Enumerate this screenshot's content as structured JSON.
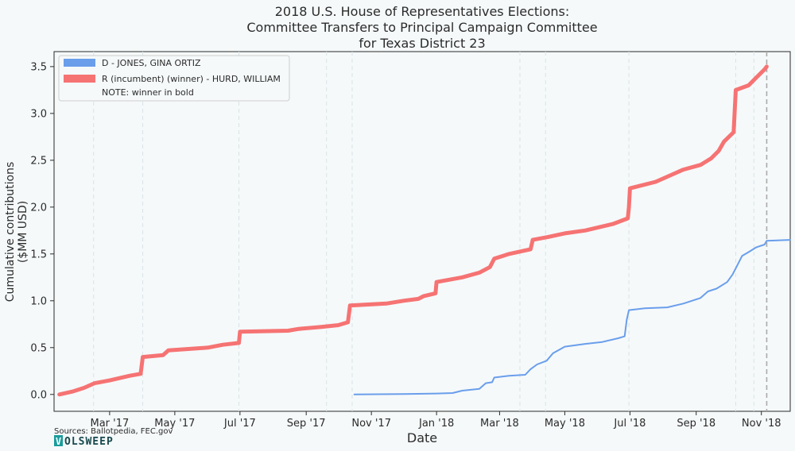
{
  "chart_data": {
    "type": "line",
    "title_lines": [
      "2018 U.S. House of Representatives Elections:",
      "Committee Transfers to Principal Campaign Committee",
      "for Texas District 23"
    ],
    "xlabel": "Date",
    "ylabel_lines": [
      "Cumulative contributions",
      "($MM USD)"
    ],
    "x_range": [
      "2017-01-08",
      "2018-11-28"
    ],
    "ylim": [
      -0.18,
      3.66
    ],
    "y_ticks": [
      0.0,
      0.5,
      1.0,
      1.5,
      2.0,
      2.5,
      3.0,
      3.5
    ],
    "y_tick_labels": [
      "0.0",
      "0.5",
      "1.0",
      "1.5",
      "2.0",
      "2.5",
      "3.0",
      "3.5"
    ],
    "x_ticks": [
      {
        "date": "2017-03-01",
        "label": "Mar '17"
      },
      {
        "date": "2017-05-01",
        "label": "May '17"
      },
      {
        "date": "2017-07-01",
        "label": "Jul '17"
      },
      {
        "date": "2017-09-01",
        "label": "Sep '17"
      },
      {
        "date": "2017-11-01",
        "label": "Nov '17"
      },
      {
        "date": "2018-01-01",
        "label": "Jan '18"
      },
      {
        "date": "2018-03-01",
        "label": "Mar '18"
      },
      {
        "date": "2018-05-01",
        "label": "May '18"
      },
      {
        "date": "2018-07-01",
        "label": "Jul '18"
      },
      {
        "date": "2018-09-01",
        "label": "Sep '18"
      },
      {
        "date": "2018-11-01",
        "label": "Nov '18"
      }
    ],
    "vertical_gridlines": [
      "2017-02-14",
      "2017-04-01",
      "2017-06-30",
      "2017-09-20",
      "2017-10-14",
      "2018-03-20",
      "2018-04-13",
      "2018-06-30",
      "2018-10-08",
      "2018-10-25"
    ],
    "election_day": "2018-11-06",
    "grid": false,
    "legend": {
      "placement": "top-left",
      "note": "NOTE: winner in bold"
    },
    "series": [
      {
        "name": "D - JONES, GINA ORTIZ",
        "color": "#6a9eeb",
        "bold": false,
        "points": [
          [
            "2017-10-16",
            0.0
          ],
          [
            "2017-12-01",
            0.005
          ],
          [
            "2018-01-01",
            0.01
          ],
          [
            "2018-01-16",
            0.015
          ],
          [
            "2018-01-25",
            0.04
          ],
          [
            "2018-02-10",
            0.06
          ],
          [
            "2018-02-16",
            0.12
          ],
          [
            "2018-02-22",
            0.13
          ],
          [
            "2018-02-24",
            0.18
          ],
          [
            "2018-03-10",
            0.2
          ],
          [
            "2018-03-25",
            0.21
          ],
          [
            "2018-03-30",
            0.27
          ],
          [
            "2018-04-05",
            0.32
          ],
          [
            "2018-04-14",
            0.36
          ],
          [
            "2018-04-20",
            0.44
          ],
          [
            "2018-05-01",
            0.51
          ],
          [
            "2018-05-20",
            0.54
          ],
          [
            "2018-06-05",
            0.56
          ],
          [
            "2018-06-20",
            0.6
          ],
          [
            "2018-06-26",
            0.62
          ],
          [
            "2018-06-28",
            0.8
          ],
          [
            "2018-06-30",
            0.9
          ],
          [
            "2018-07-15",
            0.92
          ],
          [
            "2018-08-05",
            0.93
          ],
          [
            "2018-08-20",
            0.97
          ],
          [
            "2018-09-05",
            1.03
          ],
          [
            "2018-09-12",
            1.1
          ],
          [
            "2018-09-20",
            1.13
          ],
          [
            "2018-09-30",
            1.2
          ],
          [
            "2018-10-05",
            1.28
          ],
          [
            "2018-10-10",
            1.39
          ],
          [
            "2018-10-14",
            1.48
          ],
          [
            "2018-10-20",
            1.52
          ],
          [
            "2018-10-27",
            1.57
          ],
          [
            "2018-11-04",
            1.6
          ],
          [
            "2018-11-06",
            1.64
          ],
          [
            "2018-11-28",
            1.65
          ]
        ]
      },
      {
        "name": "R (incumbent) (winner) - HURD, WILLIAM",
        "color": "#f67373",
        "bold": true,
        "points": [
          [
            "2017-01-13",
            0.0
          ],
          [
            "2017-01-25",
            0.03
          ],
          [
            "2017-02-05",
            0.07
          ],
          [
            "2017-02-15",
            0.12
          ],
          [
            "2017-03-01",
            0.15
          ],
          [
            "2017-03-20",
            0.2
          ],
          [
            "2017-03-30",
            0.22
          ],
          [
            "2017-04-01",
            0.4
          ],
          [
            "2017-04-20",
            0.42
          ],
          [
            "2017-04-25",
            0.47
          ],
          [
            "2017-06-01",
            0.5
          ],
          [
            "2017-06-15",
            0.53
          ],
          [
            "2017-06-30",
            0.55
          ],
          [
            "2017-07-01",
            0.67
          ],
          [
            "2017-08-15",
            0.68
          ],
          [
            "2017-08-25",
            0.7
          ],
          [
            "2017-09-15",
            0.72
          ],
          [
            "2017-10-01",
            0.74
          ],
          [
            "2017-10-10",
            0.77
          ],
          [
            "2017-10-12",
            0.95
          ],
          [
            "2017-11-15",
            0.97
          ],
          [
            "2017-12-01",
            1.0
          ],
          [
            "2017-12-15",
            1.02
          ],
          [
            "2017-12-20",
            1.05
          ],
          [
            "2017-12-31",
            1.08
          ],
          [
            "2018-01-01",
            1.2
          ],
          [
            "2018-01-25",
            1.25
          ],
          [
            "2018-02-10",
            1.3
          ],
          [
            "2018-02-20",
            1.36
          ],
          [
            "2018-02-24",
            1.45
          ],
          [
            "2018-03-10",
            1.5
          ],
          [
            "2018-03-30",
            1.55
          ],
          [
            "2018-04-01",
            1.65
          ],
          [
            "2018-04-15",
            1.68
          ],
          [
            "2018-05-01",
            1.72
          ],
          [
            "2018-05-20",
            1.75
          ],
          [
            "2018-06-15",
            1.82
          ],
          [
            "2018-06-29",
            1.88
          ],
          [
            "2018-06-30",
            2.0
          ],
          [
            "2018-07-01",
            2.2
          ],
          [
            "2018-07-25",
            2.27
          ],
          [
            "2018-08-10",
            2.35
          ],
          [
            "2018-08-20",
            2.4
          ],
          [
            "2018-09-05",
            2.45
          ],
          [
            "2018-09-15",
            2.52
          ],
          [
            "2018-09-22",
            2.6
          ],
          [
            "2018-09-27",
            2.7
          ],
          [
            "2018-10-06",
            2.8
          ],
          [
            "2018-10-08",
            3.25
          ],
          [
            "2018-10-20",
            3.3
          ],
          [
            "2018-10-27",
            3.38
          ],
          [
            "2018-11-04",
            3.47
          ],
          [
            "2018-11-06",
            3.5
          ]
        ]
      }
    ]
  },
  "footer": {
    "sources": "Sources: Ballotpedia, FEC.gov",
    "logo_text": "OLSWEEP",
    "logo_box_letter": "V"
  }
}
